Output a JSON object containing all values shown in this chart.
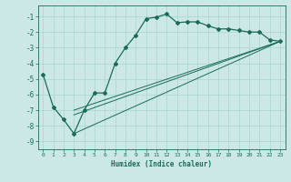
{
  "xlabel": "Humidex (Indice chaleur)",
  "bg_color": "#cce8e6",
  "line_color": "#1a6b5a",
  "grid_color": "#aad4d0",
  "xlim": [
    -0.5,
    23.5
  ],
  "ylim": [
    -9.5,
    -0.3
  ],
  "yticks": [
    -9,
    -8,
    -7,
    -6,
    -5,
    -4,
    -3,
    -2,
    -1
  ],
  "xticks": [
    0,
    1,
    2,
    3,
    4,
    5,
    6,
    7,
    8,
    9,
    10,
    11,
    12,
    13,
    14,
    15,
    16,
    17,
    18,
    19,
    20,
    21,
    22,
    23
  ],
  "curve1_x": [
    0,
    1,
    2,
    3,
    4,
    5,
    6,
    7,
    8,
    9,
    10,
    11,
    12,
    13,
    14,
    15,
    16,
    17,
    18,
    19,
    20,
    21,
    22,
    23
  ],
  "curve1_y": [
    -4.7,
    -6.8,
    -7.6,
    -8.5,
    -7.0,
    -5.9,
    -5.9,
    -4.0,
    -3.0,
    -2.2,
    -1.15,
    -1.05,
    -0.85,
    -1.4,
    -1.35,
    -1.35,
    -1.6,
    -1.8,
    -1.8,
    -1.9,
    -2.0,
    -2.0,
    -2.5,
    -2.6
  ],
  "line2_x": [
    3,
    23
  ],
  "line2_y": [
    -7.0,
    -2.6
  ],
  "line3_x": [
    3,
    23
  ],
  "line3_y": [
    -8.5,
    -2.6
  ],
  "line4_x": [
    3,
    23
  ],
  "line4_y": [
    -7.3,
    -2.6
  ]
}
